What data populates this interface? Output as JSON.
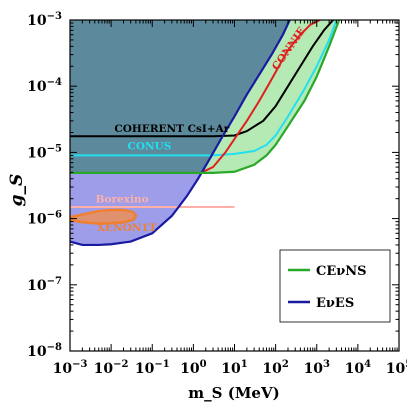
{
  "chart_data": {
    "type": "line",
    "xlabel": "m_S (MeV)",
    "ylabel": "g_S",
    "xscale": "log",
    "yscale": "log",
    "xlim": [
      0.001,
      100000
    ],
    "ylim": [
      1e-08,
      0.001
    ],
    "xticks": [
      {
        "base": "10",
        "exp": "−3"
      },
      {
        "base": "10",
        "exp": "−2"
      },
      {
        "base": "10",
        "exp": "−1"
      },
      {
        "base": "10",
        "exp": "0"
      },
      {
        "base": "10",
        "exp": "1"
      },
      {
        "base": "10",
        "exp": "2"
      },
      {
        "base": "10",
        "exp": "3"
      },
      {
        "base": "10",
        "exp": "4"
      },
      {
        "base": "10",
        "exp": "5"
      }
    ],
    "yticks": [
      {
        "base": "10",
        "exp": "−8"
      },
      {
        "base": "10",
        "exp": "−7"
      },
      {
        "base": "10",
        "exp": "−6"
      },
      {
        "base": "10",
        "exp": "−5"
      },
      {
        "base": "10",
        "exp": "−4"
      },
      {
        "base": "10",
        "exp": "−3"
      }
    ],
    "regions": [
      {
        "name": "EνES",
        "fill": "#8c8ce6",
        "edge": "#1a1aa0",
        "x": [
          0.001,
          0.001,
          0.002,
          0.005,
          0.01,
          0.03,
          0.1,
          0.3,
          0.7,
          1.3,
          2.5,
          5,
          10,
          20,
          40,
          80,
          150,
          220,
          220
        ],
        "y": [
          0.001,
          4.5e-07,
          4e-07,
          4e-07,
          4.1e-07,
          4.5e-07,
          6e-07,
          1.1e-06,
          2.2e-06,
          4e-06,
          8e-06,
          1.7e-05,
          3.5e-05,
          7.5e-05,
          0.00015,
          0.0003,
          0.0006,
          0.001,
          0.001
        ]
      },
      {
        "name": "CEνNS",
        "fill": "#a8e6a8",
        "edge": "#2aa82a",
        "x": [
          0.001,
          0.001,
          0.5,
          1.0,
          3,
          10,
          30,
          60,
          100,
          200,
          500,
          1000,
          2000,
          3500,
          3500
        ],
        "y": [
          0.001,
          4.9e-06,
          4.9e-06,
          4.9e-06,
          4.9e-06,
          5.1e-06,
          6.5e-06,
          9e-06,
          1.3e-05,
          2.5e-05,
          6e-05,
          0.00014,
          0.0004,
          0.001,
          0.001
        ]
      }
    ],
    "series": [
      {
        "name": "COHERENT CsI+Ar",
        "color": "#000000",
        "x": [
          0.001,
          3,
          10,
          20,
          50,
          100,
          200,
          400,
          800,
          1500,
          2500
        ],
        "y": [
          1.75e-05,
          1.75e-05,
          1.8e-05,
          2.1e-05,
          3e-05,
          5e-05,
          0.0001,
          0.0002,
          0.0004,
          0.0007,
          0.001
        ]
      },
      {
        "name": "CONUS",
        "color": "#22e0f0",
        "x": [
          0.001,
          3,
          10,
          30,
          60,
          100,
          200,
          500,
          1000,
          2000,
          3000
        ],
        "y": [
          9e-06,
          9e-06,
          9.5e-06,
          1.05e-05,
          1.3e-05,
          1.8e-05,
          3.5e-05,
          9e-05,
          0.0002,
          0.0005,
          0.001
        ]
      },
      {
        "name": "CONNIE",
        "color": "#e02020",
        "x": [
          1.5,
          3,
          6,
          10,
          20,
          40,
          70,
          120,
          200,
          400,
          700,
          1200
        ],
        "y": [
          4.9e-06,
          6e-06,
          1e-05,
          1.6e-05,
          3e-05,
          6e-05,
          0.00011,
          0.0002,
          0.00035,
          0.0006,
          0.00085,
          0.001
        ]
      },
      {
        "name": "Borexino",
        "color": "#ffb0a8",
        "x": [
          0.001,
          0.3,
          1,
          3,
          6,
          10
        ],
        "y": [
          1.5e-06,
          1.5e-06,
          1.5e-06,
          1.5e-06,
          1.5e-06,
          1.5e-06
        ]
      }
    ],
    "xenon_region": {
      "name": "XENON1T",
      "fill": "#e89060",
      "edge": "#f08030",
      "x": [
        0.001,
        0.002,
        0.005,
        0.01,
        0.02,
        0.035,
        0.04,
        0.035,
        0.02,
        0.01,
        0.005,
        0.002,
        0.001
      ],
      "y": [
        1.05e-06,
        1.15e-06,
        1.3e-06,
        1.35e-06,
        1.35e-06,
        1.25e-06,
        1.1e-06,
        9.6e-07,
        8.8e-07,
        8.5e-07,
        8.4e-07,
        8.8e-07,
        9.5e-07
      ]
    },
    "annotations": [
      {
        "text": "COHERENT CsI+Ar",
        "color": "#000000",
        "x": 0.012,
        "y": 2.05e-05,
        "rotate": 0
      },
      {
        "text": "CONUS",
        "color": "#22e0f0",
        "x": 0.025,
        "y": 1.1e-05,
        "rotate": 0
      },
      {
        "text": "CONNIE",
        "color": "#e02020",
        "x": 110,
        "y": 0.00017,
        "rotate": -55
      },
      {
        "text": "Borexino",
        "color": "#ffb0a8",
        "x": 0.0042,
        "y": 1.75e-06,
        "rotate": 0
      },
      {
        "text": "XENON1T",
        "color": "#f08030",
        "x": 0.0045,
        "y": 6.5e-07,
        "rotate": 0
      }
    ],
    "legend": {
      "placement": "bottom-right",
      "entries": [
        {
          "label": "CEνNS",
          "color": "#2aa82a"
        },
        {
          "label": "EνES",
          "color": "#1a1aa0"
        }
      ]
    },
    "colors": {
      "dark_region": "#5c8a9c"
    }
  }
}
